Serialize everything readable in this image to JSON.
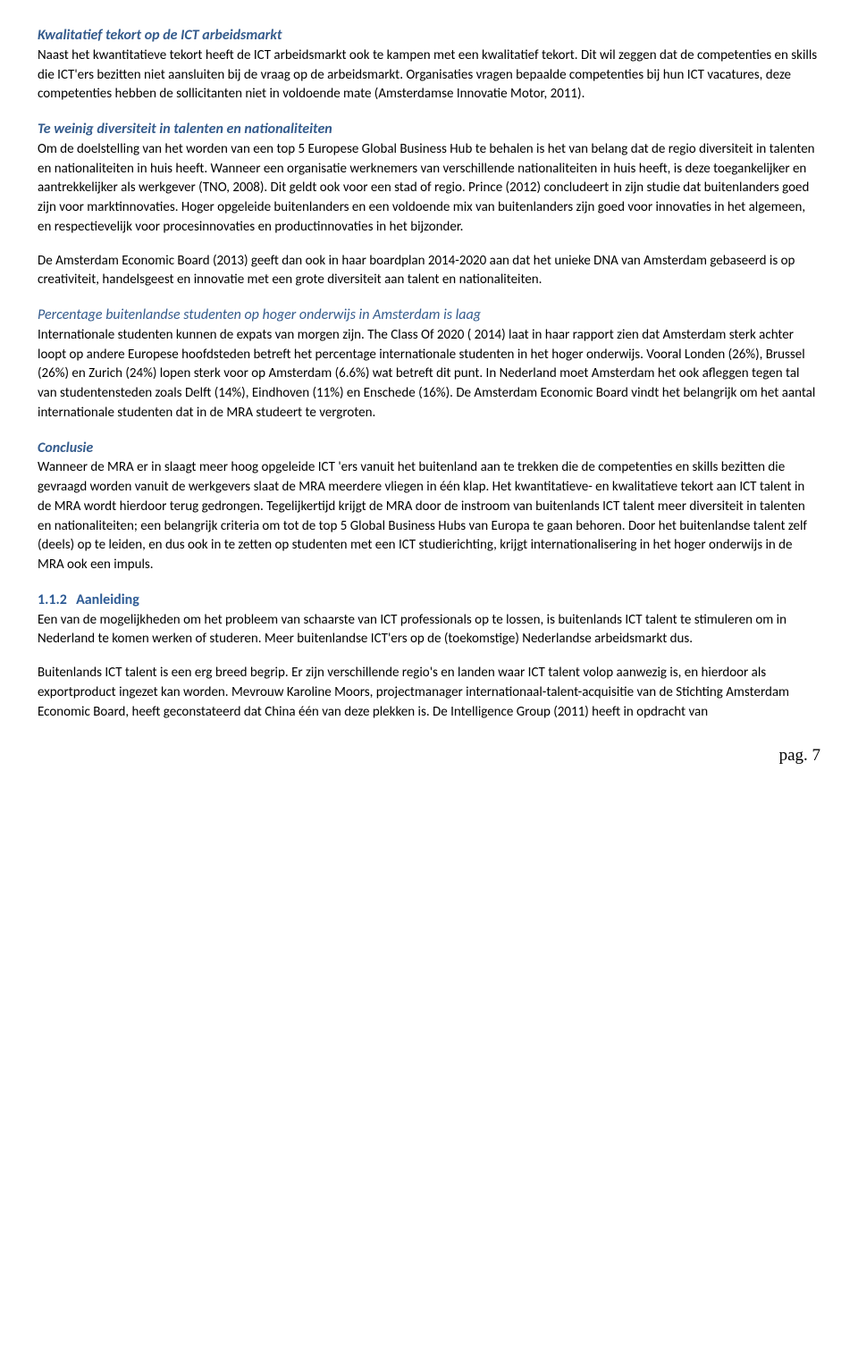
{
  "section1": {
    "heading": "Kwalitatief tekort op de ICT arbeidsmarkt",
    "para1": "Naast het kwantitatieve tekort heeft de ICT arbeidsmarkt ook te kampen met een kwalitatief tekort. Dit wil zeggen dat de competenties en skills die ICT'ers bezitten niet aansluiten bij de vraag op de arbeidsmarkt. Organisaties vragen bepaalde competenties bij hun ICT vacatures, deze competenties hebben de sollicitanten niet in voldoende mate (Amsterdamse Innovatie Motor, 2011)."
  },
  "section2": {
    "heading": "Te weinig diversiteit in talenten en nationaliteiten",
    "para1": "Om de doelstelling van het worden van een top 5 Europese Global Business Hub te behalen is het van belang dat de regio diversiteit in talenten en nationaliteiten in huis heeft. Wanneer een organisatie werknemers van verschillende nationaliteiten in huis heeft, is deze toegankelijker en aantrekkelijker als werkgever (TNO, 2008). Dit geldt ook voor een stad of regio. Prince (2012) concludeert in zijn studie dat buitenlanders goed zijn voor marktinnovaties. Hoger opgeleide buitenlanders en een voldoende mix van buitenlanders zijn goed voor innovaties in het algemeen, en respectievelijk voor procesinnovaties en productinnovaties in het bijzonder.",
    "para2": "De Amsterdam Economic Board (2013) geeft dan ook in haar boardplan 2014-2020 aan dat het unieke DNA van Amsterdam gebaseerd is op creativiteit, handelsgeest en innovatie met een grote diversiteit aan talent en nationaliteiten."
  },
  "section3": {
    "heading": "Percentage buitenlandse studenten op hoger onderwijs in Amsterdam is laag",
    "para1": "Internationale studenten kunnen de expats van morgen zijn. The Class Of 2020 ( 2014) laat in haar rapport zien dat Amsterdam sterk achter loopt op andere Europese hoofdsteden betreft het percentage internationale studenten in het hoger onderwijs. Vooral Londen (26%), Brussel (26%) en Zurich (24%) lopen sterk voor op Amsterdam (6.6%) wat betreft dit punt. In Nederland moet Amsterdam het ook afleggen tegen tal van studentensteden zoals Delft (14%), Eindhoven (11%) en Enschede (16%). De Amsterdam Economic Board vindt het belangrijk om het aantal internationale studenten dat in de MRA studeert te vergroten."
  },
  "section4": {
    "heading": "Conclusie",
    "para1": "Wanneer de MRA er in slaagt meer hoog opgeleide ICT 'ers vanuit het buitenland aan te trekken die de competenties en skills bezitten die gevraagd worden vanuit de werkgevers slaat de MRA meerdere vliegen in één klap. Het kwantitatieve- en kwalitatieve tekort aan ICT talent in de MRA wordt hierdoor terug gedrongen. Tegelijkertijd krijgt de MRA door de instroom van buitenlands ICT talent meer diversiteit in talenten en nationaliteiten; een belangrijk criteria om tot de top 5 Global Business Hubs van Europa te gaan behoren. Door het buitenlandse talent zelf (deels) op te leiden, en dus ook in te zetten op studenten met een ICT studierichting, krijgt internationalisering in het hoger onderwijs in de MRA ook een impuls."
  },
  "section5": {
    "num": "1.1.2",
    "title": "Aanleiding",
    "para1": "Een van de mogelijkheden om het probleem van schaarste van ICT professionals op te lossen, is buitenlands ICT talent te stimuleren om in Nederland te komen werken of studeren. Meer buitenlandse ICT'ers op de (toekomstige) Nederlandse arbeidsmarkt dus.",
    "para2": "Buitenlands ICT talent is een erg breed begrip. Er zijn verschillende regio's en landen waar ICT talent volop aanwezig is, en hierdoor als exportproduct ingezet kan worden. Mevrouw Karoline Moors, projectmanager internationaal-talent-acquisitie van de Stichting Amsterdam Economic Board, heeft geconstateerd dat China één van deze plekken is. De Intelligence Group (2011) heeft in opdracht van"
  },
  "pageNumber": "pag. 7"
}
